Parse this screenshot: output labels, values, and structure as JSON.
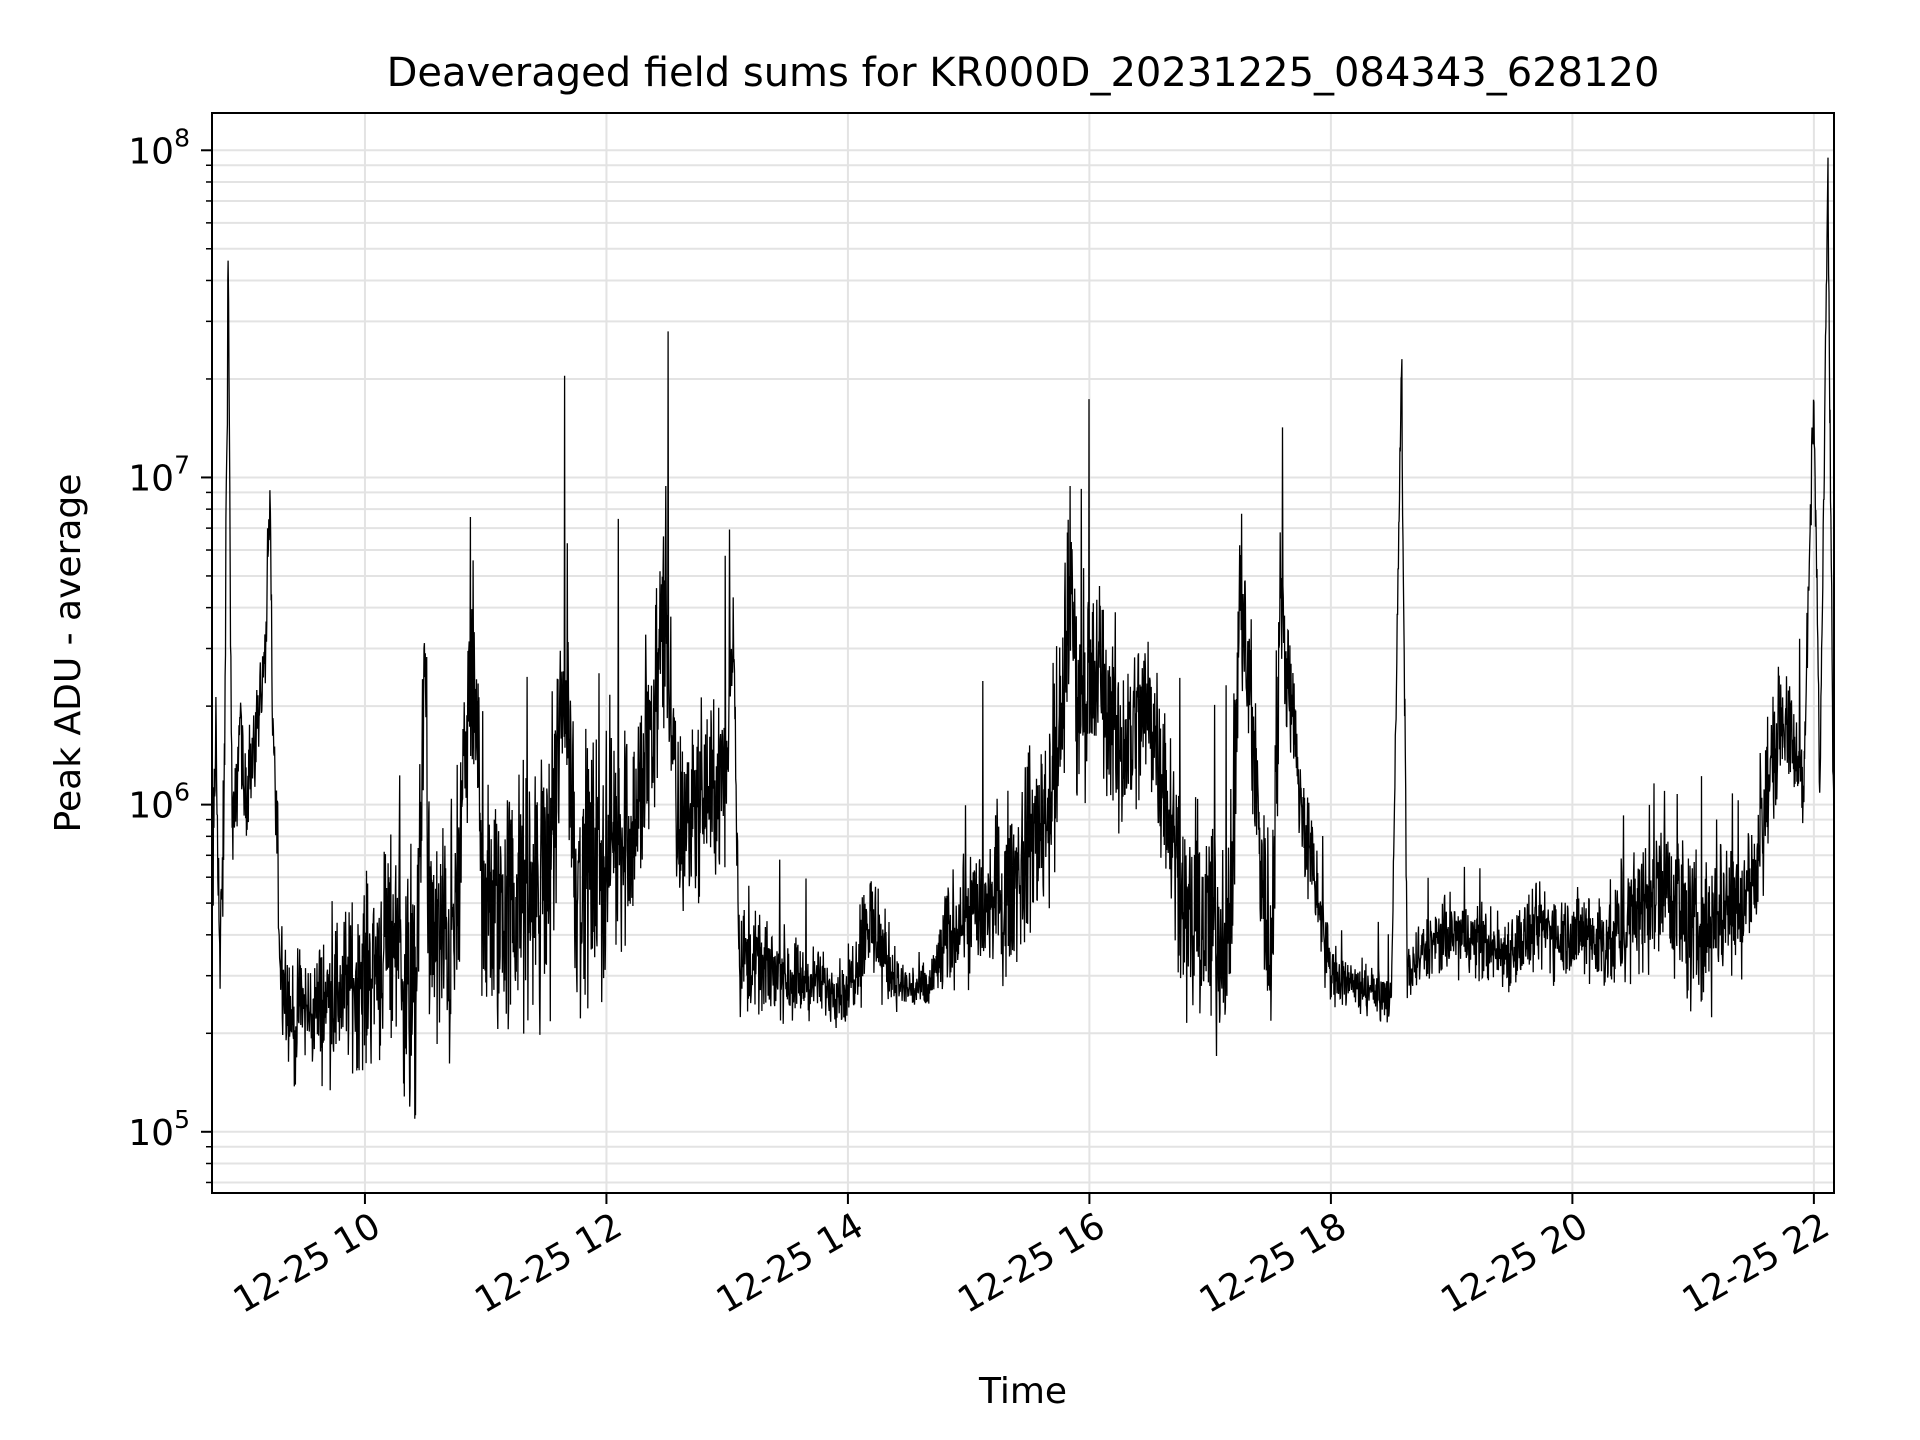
{
  "chart_data": {
    "type": "line",
    "title": "Deaveraged field sums for KR000D_20231225_084343_628120",
    "xlabel": "Time",
    "ylabel": "Peak ADU - average",
    "x_range": [
      "2023-12-25 08:44",
      "2023-12-25 22:10"
    ],
    "ylim": [
      65000,
      130000000
    ],
    "yscale": "log",
    "grid": true,
    "legend": "none",
    "line_color": "#000000",
    "grid_color": "#e3e3e3",
    "x_ticks": [
      {
        "time": "2023-12-25 10:00",
        "label": "12-25 10"
      },
      {
        "time": "2023-12-25 12:00",
        "label": "12-25 12"
      },
      {
        "time": "2023-12-25 14:00",
        "label": "12-25 14"
      },
      {
        "time": "2023-12-25 16:00",
        "label": "12-25 16"
      },
      {
        "time": "2023-12-25 18:00",
        "label": "12-25 18"
      },
      {
        "time": "2023-12-25 20:00",
        "label": "12-25 20"
      },
      {
        "time": "2023-12-25 22:00",
        "label": "12-25 22"
      }
    ],
    "y_ticks": [
      {
        "value": 100000,
        "base": "10",
        "exp": "5"
      },
      {
        "value": 1000000,
        "base": "10",
        "exp": "6"
      },
      {
        "value": 10000000,
        "base": "10",
        "exp": "7"
      },
      {
        "value": 100000000,
        "base": "10",
        "exp": "8"
      }
    ],
    "series": [
      {
        "x": [
          "2023-12-25 08:44",
          "2023-12-25 08:46",
          "2023-12-25 08:48",
          "2023-12-25 08:50",
          "2023-12-25 08:52",
          "2023-12-25 08:54",
          "2023-12-25 08:55",
          "2023-12-25 08:56",
          "2023-12-25 08:58",
          "2023-12-25 09:00",
          "2023-12-25 09:05",
          "2023-12-25 09:10",
          "2023-12-25 09:13",
          "2023-12-25 09:14",
          "2023-12-25 09:18",
          "2023-12-25 09:22",
          "2023-12-25 09:25",
          "2023-12-25 09:28",
          "2023-12-25 09:32",
          "2023-12-25 09:40",
          "2023-12-25 09:50",
          "2023-12-25 10:00",
          "2023-12-25 10:15",
          "2023-12-25 10:25",
          "2023-12-25 10:30",
          "2023-12-25 10:32",
          "2023-12-25 10:45",
          "2023-12-25 10:53",
          "2023-12-25 11:00",
          "2023-12-25 11:15",
          "2023-12-25 11:30",
          "2023-12-25 11:40",
          "2023-12-25 11:45",
          "2023-12-25 12:00",
          "2023-12-25 12:15",
          "2023-12-25 12:30",
          "2023-12-25 12:35",
          "2023-12-25 12:45",
          "2023-12-25 13:00",
          "2023-12-25 13:03",
          "2023-12-25 13:06",
          "2023-12-25 13:15",
          "2023-12-25 13:30",
          "2023-12-25 13:45",
          "2023-12-25 14:00",
          "2023-12-25 14:10",
          "2023-12-25 14:25",
          "2023-12-25 14:40",
          "2023-12-25 14:50",
          "2023-12-25 15:00",
          "2023-12-25 15:15",
          "2023-12-25 15:30",
          "2023-12-25 15:45",
          "2023-12-25 15:50",
          "2023-12-25 15:55",
          "2023-12-25 16:05",
          "2023-12-25 16:15",
          "2023-12-25 16:30",
          "2023-12-25 16:40",
          "2023-12-25 16:50",
          "2023-12-25 17:00",
          "2023-12-25 17:10",
          "2023-12-25 17:15",
          "2023-12-25 17:30",
          "2023-12-25 17:35",
          "2023-12-25 17:45",
          "2023-12-25 18:00",
          "2023-12-25 18:15",
          "2023-12-25 18:30",
          "2023-12-25 18:35",
          "2023-12-25 18:38",
          "2023-12-25 18:45",
          "2023-12-25 19:00",
          "2023-12-25 19:15",
          "2023-12-25 19:25",
          "2023-12-25 19:45",
          "2023-12-25 20:00",
          "2023-12-25 20:20",
          "2023-12-25 20:30",
          "2023-12-25 20:45",
          "2023-12-25 21:00",
          "2023-12-25 21:15",
          "2023-12-25 21:30",
          "2023-12-25 21:40",
          "2023-12-25 21:45",
          "2023-12-25 21:55",
          "2023-12-25 22:00",
          "2023-12-25 22:03",
          "2023-12-25 22:07",
          "2023-12-25 22:10"
        ],
        "y": [
          400000,
          1800000,
          300000,
          900000,
          46000000,
          800000,
          900000,
          1000000,
          2000000,
          1000000,
          1500000,
          2500000,
          7800000,
          2000000,
          350000,
          250000,
          200000,
          250000,
          230000,
          250000,
          280000,
          300000,
          400000,
          200000,
          2900000,
          350000,
          400000,
          2900000,
          450000,
          500000,
          550000,
          2400000,
          600000,
          700000,
          900000,
          3800000,
          800000,
          1000000,
          1200000,
          4300000,
          350000,
          320000,
          300000,
          280000,
          270000,
          450000,
          280000,
          270000,
          400000,
          480000,
          500000,
          700000,
          1300000,
          5000000,
          2000000,
          2500000,
          1500000,
          2000000,
          1000000,
          400000,
          450000,
          350000,
          4700000,
          300000,
          4300000,
          1000000,
          300000,
          280000,
          250000,
          20000000,
          300000,
          350000,
          400000,
          380000,
          350000,
          420000,
          400000,
          380000,
          450000,
          600000,
          400000,
          500000,
          550000,
          1500000,
          1800000,
          1200000,
          17000000,
          1100000,
          95000000,
          600000
        ],
        "noise_amplitude": [
          0.3,
          0.3,
          0.3,
          0.3,
          0,
          0.2,
          0.2,
          0.2,
          0.2,
          0.2,
          0.2,
          0.2,
          0,
          0.2,
          0.3,
          0.25,
          0.25,
          0.25,
          0.25,
          0.3,
          0.35,
          0.4,
          0.5,
          0.55,
          0,
          0.55,
          0.6,
          0,
          0.6,
          0.6,
          0.6,
          0,
          0.6,
          0.55,
          0.5,
          0,
          0.45,
          0.4,
          0.4,
          0,
          0.25,
          0.2,
          0.2,
          0.15,
          0.15,
          0.3,
          0.12,
          0.12,
          0.25,
          0.3,
          0.35,
          0.4,
          0.5,
          0,
          0.45,
          0.45,
          0.45,
          0.4,
          0.4,
          0.45,
          0.5,
          0.5,
          0,
          0.45,
          0,
          0.3,
          0.15,
          0.12,
          0.1,
          0,
          0.15,
          0.15,
          0.18,
          0.18,
          0.18,
          0.2,
          0.2,
          0.25,
          0.3,
          0.35,
          0.35,
          0.35,
          0.35,
          0.3,
          0.25,
          0.2,
          0,
          0.15,
          0,
          0.2
        ]
      }
    ]
  }
}
